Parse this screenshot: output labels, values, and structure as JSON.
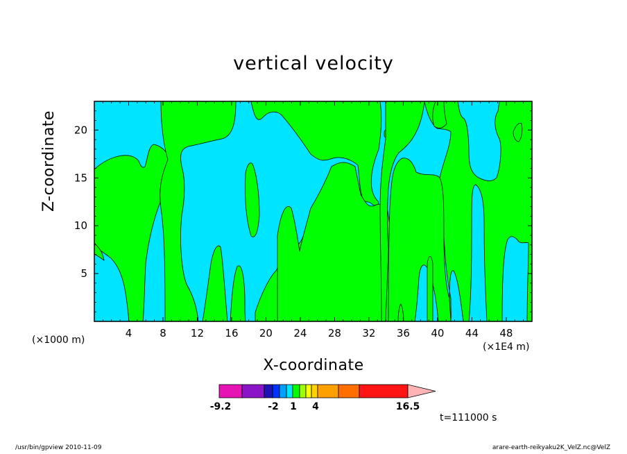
{
  "chart_data": {
    "type": "heatmap",
    "title": "vertical velocity",
    "xlabel": "X-coordinate",
    "ylabel": "Z-coordinate",
    "x_unit_left": "(×1000 m)",
    "x_unit_right": "(×1E4 m)",
    "xlim": [
      0,
      51
    ],
    "ylim": [
      0,
      23
    ],
    "x_ticks": [
      4,
      8,
      12,
      16,
      20,
      24,
      28,
      32,
      36,
      40,
      44,
      48
    ],
    "x_tick_labels": [
      "4",
      "8",
      "12",
      "16",
      "20",
      "24",
      "28",
      "32",
      "36",
      "40",
      "44",
      "48"
    ],
    "y_ticks": [
      5,
      10,
      15,
      20
    ],
    "y_tick_labels": [
      "5",
      "10",
      "15",
      "20"
    ],
    "colors": {
      "background_level": "#00e5ff",
      "positive_level": "#00ff00",
      "contour_line": "#000000"
    },
    "colorbar": {
      "colors": [
        "#e614b4",
        "#8c14c8",
        "#1e14b4",
        "#0032ff",
        "#00a0ff",
        "#00e5ff",
        "#00ff00",
        "#a0ff00",
        "#ffff00",
        "#ffd200",
        "#ffa000",
        "#ff6e00",
        "#ff1414",
        "#ff8080",
        "#ffb4b4"
      ],
      "labels": [
        "-9.2",
        "-2",
        "1",
        "4",
        "16.5"
      ],
      "label_values": [
        -9.2,
        -2,
        1,
        4,
        16.5
      ]
    },
    "annotation": "t=111000 s"
  },
  "footer": {
    "left": "/usr/bin/gpview   2010-11-09",
    "right": "arare-earth-reikyaku2K_VelZ.nc@VelZ"
  }
}
